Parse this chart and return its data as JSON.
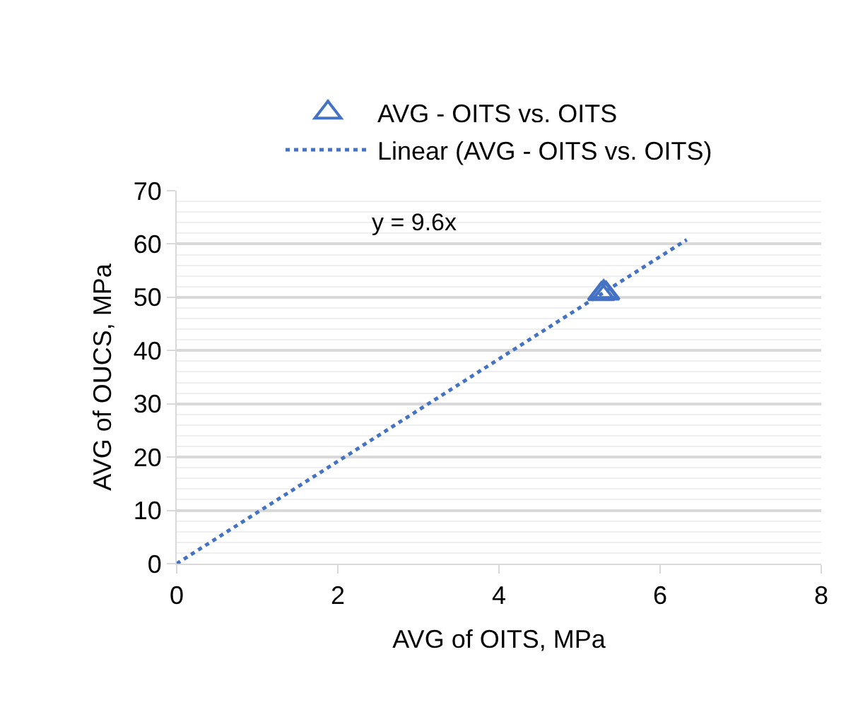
{
  "chart_data": {
    "type": "scatter",
    "xlabel": "AVG of OITS, MPa",
    "ylabel": "AVG of OUCS, MPa",
    "annotations": [
      "y = 9.6x"
    ],
    "series": [
      {
        "name": "AVG - OITS vs. OITS",
        "color": "#4472c4",
        "marker": "triangle",
        "x": [
          5.27,
          5.3,
          5.33
        ],
        "values": [
          50.6,
          51.0,
          50.7
        ]
      },
      {
        "name": "Linear (AVG - OITS vs. OITS)",
        "type": "line",
        "color": "#4472c4",
        "line_style": "dotted",
        "marker": "none",
        "x": [
          0,
          6.33
        ],
        "values": [
          0,
          60.8
        ]
      }
    ],
    "xlim": [
      0,
      8
    ],
    "xticks": [
      0,
      2,
      4,
      6,
      8
    ],
    "ylim": [
      0,
      70
    ],
    "yticks": [
      0,
      10,
      20,
      30,
      40,
      50,
      60,
      70
    ],
    "grid": "y",
    "legend": "top"
  }
}
